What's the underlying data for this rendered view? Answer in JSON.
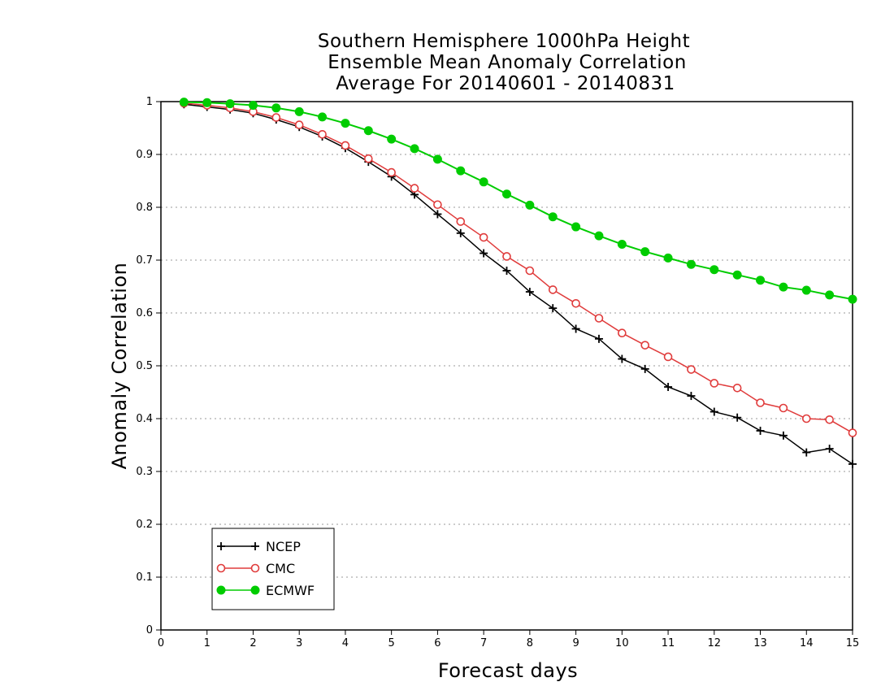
{
  "chart_data": {
    "type": "line",
    "title": [
      "Southern Hemisphere 1000hPa Height",
      "Ensemble Mean Anomaly Correlation",
      "Average For 20140601 - 20140831"
    ],
    "xlabel": "Forecast days",
    "ylabel": "Anomaly Correlation",
    "xlim": [
      0,
      15
    ],
    "ylim": [
      0,
      1
    ],
    "x_ticks": [
      "0",
      "1",
      "2",
      "3",
      "4",
      "5",
      "6",
      "7",
      "8",
      "9",
      "10",
      "11",
      "12",
      "13",
      "14",
      "15"
    ],
    "y_ticks": [
      "0",
      "0.1",
      "0.2",
      "0.3",
      "0.4",
      "0.5",
      "0.6",
      "0.7",
      "0.8",
      "0.9",
      "1"
    ],
    "grid": true,
    "legend_position": "bottom-left",
    "x": [
      0.5,
      1,
      1.5,
      2,
      2.5,
      3,
      3.5,
      4,
      4.5,
      5,
      5.5,
      6,
      6.5,
      7,
      7.5,
      8,
      8.5,
      9,
      9.5,
      10,
      10.5,
      11,
      11.5,
      12,
      12.5,
      13,
      13.5,
      14,
      14.5,
      15
    ],
    "series": [
      {
        "name": "NCEP",
        "color": "#000000",
        "marker": "plus",
        "values": [
          0.995,
          0.99,
          0.985,
          0.978,
          0.966,
          0.952,
          0.934,
          0.912,
          0.886,
          0.858,
          0.824,
          0.787,
          0.751,
          0.713,
          0.68,
          0.64,
          0.609,
          0.57,
          0.551,
          0.513,
          0.494,
          0.46,
          0.443,
          0.413,
          0.402,
          0.377,
          0.368,
          0.336,
          0.343,
          0.314
        ]
      },
      {
        "name": "CMC",
        "color": "#e03c3c",
        "marker": "open-circle",
        "values": [
          0.997,
          0.993,
          0.988,
          0.981,
          0.97,
          0.956,
          0.938,
          0.917,
          0.892,
          0.866,
          0.836,
          0.805,
          0.773,
          0.743,
          0.707,
          0.68,
          0.644,
          0.618,
          0.59,
          0.562,
          0.539,
          0.517,
          0.493,
          0.467,
          0.458,
          0.43,
          0.42,
          0.4,
          0.398,
          0.373
        ]
      },
      {
        "name": "ECMWF",
        "color": "#00cc00",
        "marker": "filled-circle",
        "values": [
          0.999,
          0.998,
          0.996,
          0.993,
          0.988,
          0.981,
          0.971,
          0.959,
          0.945,
          0.929,
          0.911,
          0.891,
          0.869,
          0.848,
          0.825,
          0.804,
          0.782,
          0.763,
          0.746,
          0.73,
          0.716,
          0.704,
          0.692,
          0.682,
          0.672,
          0.662,
          0.649,
          0.643,
          0.634,
          0.626
        ]
      }
    ]
  }
}
